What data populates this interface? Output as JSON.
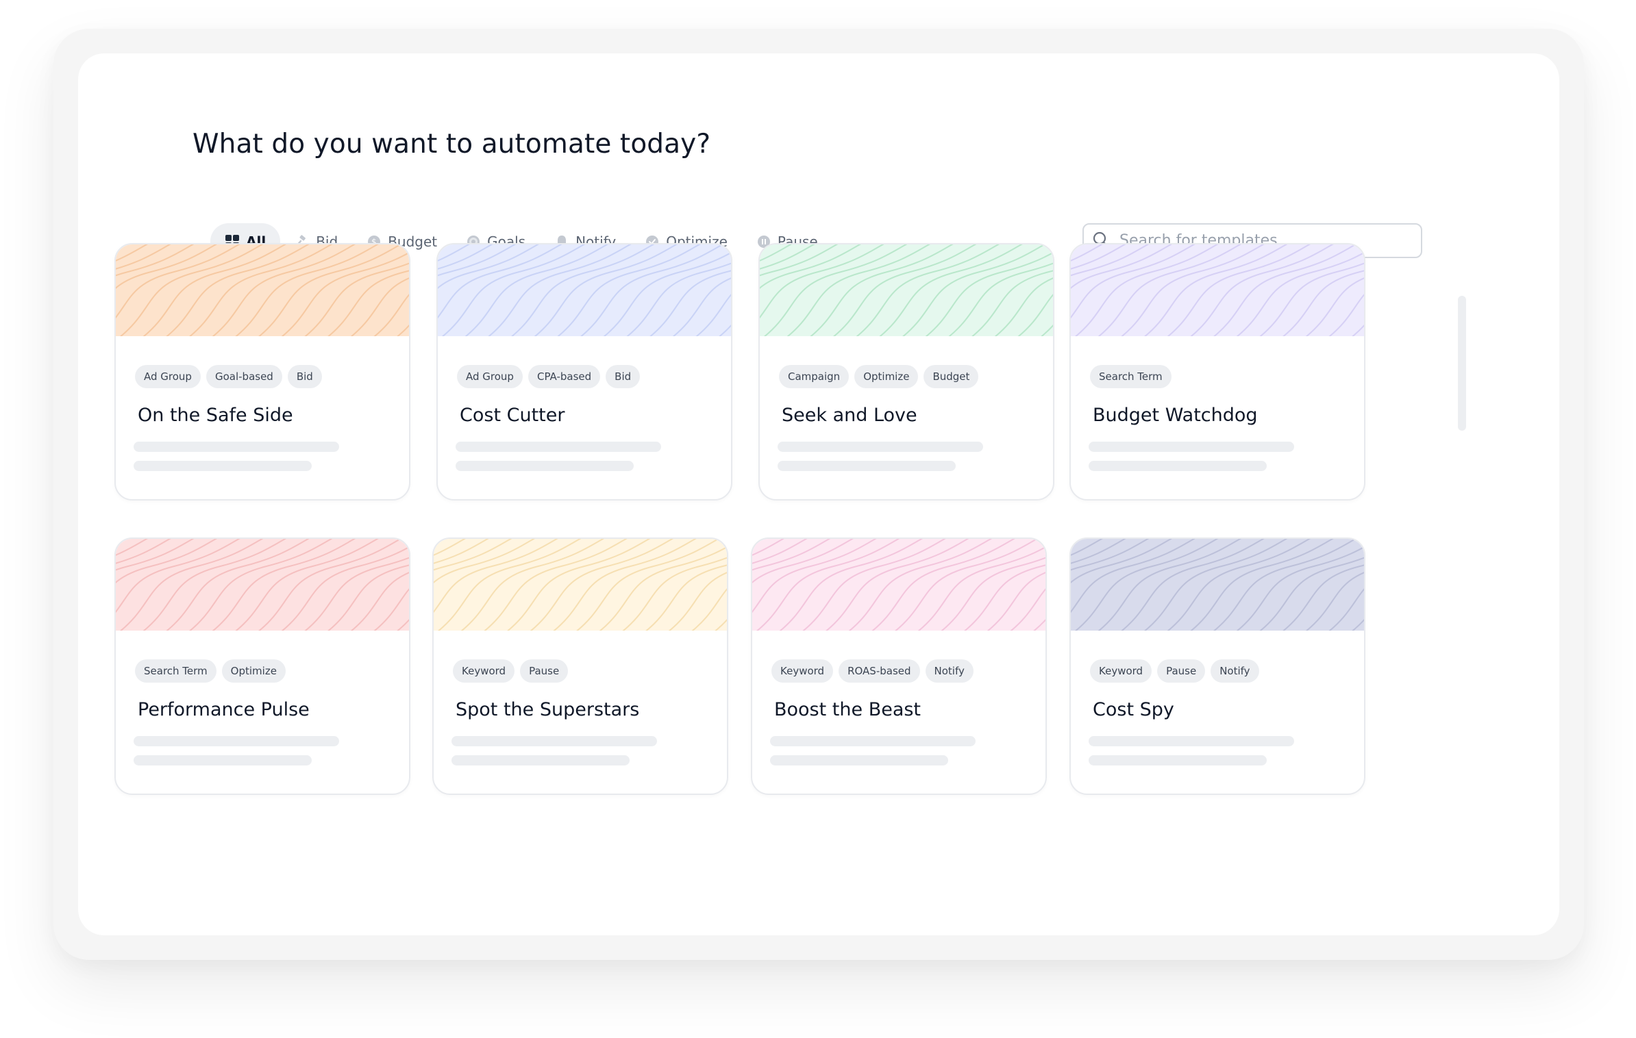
{
  "page": {
    "title": "What do you want to automate today?"
  },
  "filters": [
    {
      "label": "All",
      "icon": "grid-icon",
      "active": true
    },
    {
      "label": "Bid",
      "icon": "gavel-icon",
      "active": false
    },
    {
      "label": "Budget",
      "icon": "coin-icon",
      "active": false
    },
    {
      "label": "Goals",
      "icon": "target-icon",
      "active": false
    },
    {
      "label": "Notify",
      "icon": "bell-icon",
      "active": false
    },
    {
      "label": "Optimize",
      "icon": "check-circle-icon",
      "active": false
    },
    {
      "label": "Pause",
      "icon": "pause-circle-icon",
      "active": false
    }
  ],
  "search": {
    "placeholder": "Search for templates",
    "value": ""
  },
  "cards": [
    {
      "title": "On the Safe Side",
      "tags": [
        "Ad Group",
        "Goal-based",
        "Bid"
      ],
      "banner_color": "#fde3cc",
      "line_color": "#f6c9a2"
    },
    {
      "title": "Cost Cutter",
      "tags": [
        "Ad Group",
        "CPA-based",
        "Bid"
      ],
      "banner_color": "#e6ebfd",
      "line_color": "#c9d3f6"
    },
    {
      "title": "Seek and Love",
      "tags": [
        "Campaign",
        "Optimize",
        "Budget"
      ],
      "banner_color": "#e5f8ee",
      "line_color": "#b9e7cb"
    },
    {
      "title": "Budget Watchdog",
      "tags": [
        "Search Term"
      ],
      "banner_color": "#eeebfd",
      "line_color": "#d6d0f5"
    },
    {
      "title": "Performance Pulse",
      "tags": [
        "Search Term",
        "Optimize"
      ],
      "banner_color": "#fde1e1",
      "line_color": "#f5c0c0"
    },
    {
      "title": "Spot the Superstars",
      "tags": [
        "Keyword",
        "Pause"
      ],
      "banner_color": "#fff5e1",
      "line_color": "#f6dfb2"
    },
    {
      "title": "Boost the Beast",
      "tags": [
        "Keyword",
        "ROAS-based",
        "Notify"
      ],
      "banner_color": "#fde8f2",
      "line_color": "#f3c5dc"
    },
    {
      "title": "Cost Spy",
      "tags": [
        "Keyword",
        "Pause",
        "Notify"
      ],
      "banner_color": "#d8dbec",
      "line_color": "#bcc0d9"
    }
  ]
}
